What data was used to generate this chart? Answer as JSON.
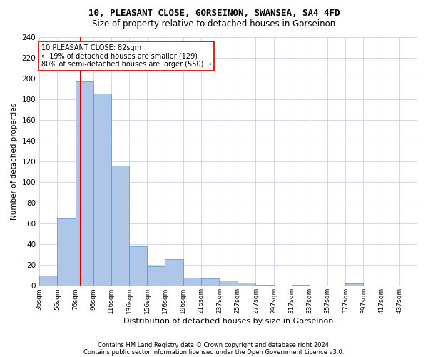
{
  "title": "10, PLEASANT CLOSE, GORSEINON, SWANSEA, SA4 4FD",
  "subtitle": "Size of property relative to detached houses in Gorseinon",
  "xlabel": "Distribution of detached houses by size in Gorseinon",
  "ylabel": "Number of detached properties",
  "bins": [
    "36sqm",
    "56sqm",
    "76sqm",
    "96sqm",
    "116sqm",
    "136sqm",
    "156sqm",
    "176sqm",
    "196sqm",
    "216sqm",
    "237sqm",
    "257sqm",
    "277sqm",
    "297sqm",
    "317sqm",
    "337sqm",
    "357sqm",
    "377sqm",
    "397sqm",
    "417sqm",
    "437sqm"
  ],
  "bin_edges": [
    36,
    56,
    76,
    96,
    116,
    136,
    156,
    176,
    196,
    216,
    237,
    257,
    277,
    297,
    317,
    337,
    357,
    377,
    397,
    417,
    437
  ],
  "values": [
    10,
    65,
    197,
    185,
    116,
    38,
    19,
    26,
    8,
    7,
    5,
    3,
    1,
    0,
    1,
    0,
    0,
    2,
    0,
    0
  ],
  "bar_color": "#aec6e8",
  "bar_edge_color": "#5a8fc2",
  "property_size": 82,
  "property_line_color": "#cc0000",
  "annotation_text": "10 PLEASANT CLOSE: 82sqm\n← 19% of detached houses are smaller (129)\n80% of semi-detached houses are larger (550) →",
  "annotation_box_color": "#ffffff",
  "annotation_box_edge_color": "#cc0000",
  "ylim": [
    0,
    240
  ],
  "yticks": [
    0,
    20,
    40,
    60,
    80,
    100,
    120,
    140,
    160,
    180,
    200,
    220,
    240
  ],
  "footer_line1": "Contains HM Land Registry data © Crown copyright and database right 2024.",
  "footer_line2": "Contains public sector information licensed under the Open Government Licence v3.0.",
  "background_color": "#ffffff",
  "grid_color": "#d0d8e8"
}
